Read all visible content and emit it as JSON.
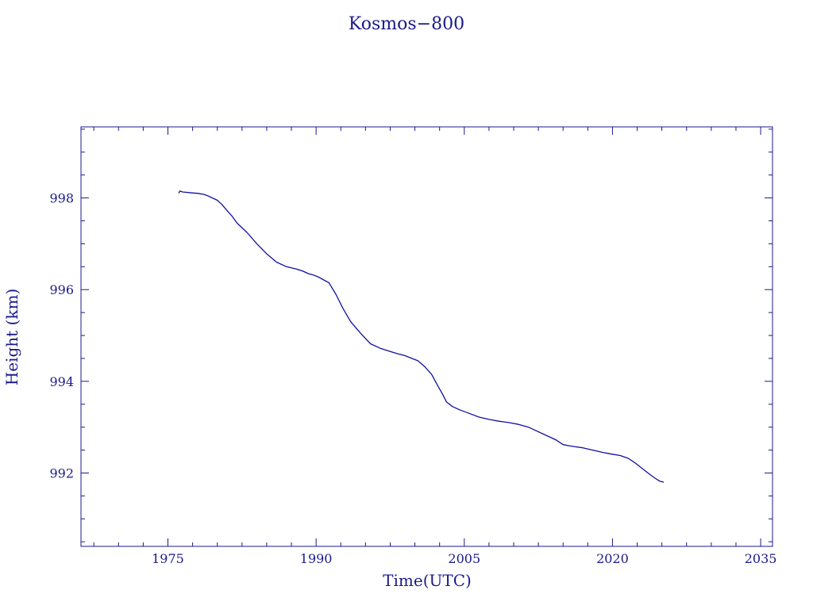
{
  "colors": {
    "ink": "#1a1a8c",
    "series": "#1010a0",
    "background": "#ffffff"
  },
  "chart_data": {
    "type": "line",
    "title": "Kosmos−800",
    "xlabel": "Time(UTC)",
    "ylabel": "Height (km)",
    "xlim": [
      1966.2,
      2036.2
    ],
    "ylim": [
      990.4,
      999.55
    ],
    "xticks": [
      1975,
      1990,
      2005,
      2020,
      2035
    ],
    "xtick_labels": [
      "1975",
      "1990",
      "2005",
      "2020",
      "2035"
    ],
    "x_minor_step": 2.5,
    "yticks": [
      992,
      994,
      996,
      998
    ],
    "ytick_labels": [
      "992",
      "994",
      "996",
      "998"
    ],
    "y_minor_step": 0.5,
    "grid": false,
    "legend": "none",
    "series": [
      {
        "x": [
          1976.1,
          1976.2,
          1976.5,
          1977.0,
          1977.5,
          1978.0,
          1978.6,
          1979.0,
          1979.5,
          1980.0,
          1980.5,
          1981.0,
          1981.5,
          1982.0,
          1983.0,
          1984.0,
          1985.0,
          1986.0,
          1987.0,
          1988.0,
          1988.7,
          1989.2,
          1989.7,
          1990.2,
          1990.7,
          1991.3,
          1992.0,
          1992.7,
          1993.5,
          1994.5,
          1995.5,
          1996.5,
          1997.5,
          1998.3,
          1999.0,
          1999.7,
          2000.3,
          2001.0,
          2001.7,
          2002.2,
          2002.8,
          2003.2,
          2003.8,
          2004.5,
          2005.5,
          2006.5,
          2007.5,
          2008.5,
          2009.5,
          2010.5,
          2011.5,
          2012.3,
          2013.0,
          2013.7,
          2014.3,
          2015.0,
          2015.7,
          2016.3,
          2017.0,
          2018.0,
          2019.0,
          2020.0,
          2020.8,
          2021.6,
          2022.3,
          2023.0,
          2023.6,
          2024.1,
          2024.5,
          2024.8,
          2025.2
        ],
        "y": [
          998.1,
          998.15,
          998.13,
          998.12,
          998.11,
          998.1,
          998.08,
          998.05,
          998.0,
          997.95,
          997.85,
          997.72,
          997.6,
          997.45,
          997.25,
          997.0,
          996.78,
          996.6,
          996.5,
          996.45,
          996.4,
          996.35,
          996.32,
          996.28,
          996.22,
          996.15,
          995.9,
          995.6,
          995.3,
          995.05,
          994.82,
          994.72,
          994.65,
          994.6,
          994.56,
          994.5,
          994.45,
          994.32,
          994.15,
          993.95,
          993.72,
          993.55,
          993.45,
          993.38,
          993.3,
          993.22,
          993.17,
          993.13,
          993.1,
          993.06,
          993.0,
          992.92,
          992.85,
          992.78,
          992.72,
          992.62,
          992.59,
          992.57,
          992.55,
          992.5,
          992.45,
          992.41,
          992.38,
          992.32,
          992.22,
          992.1,
          992.0,
          991.92,
          991.86,
          991.82,
          991.8
        ]
      }
    ]
  }
}
